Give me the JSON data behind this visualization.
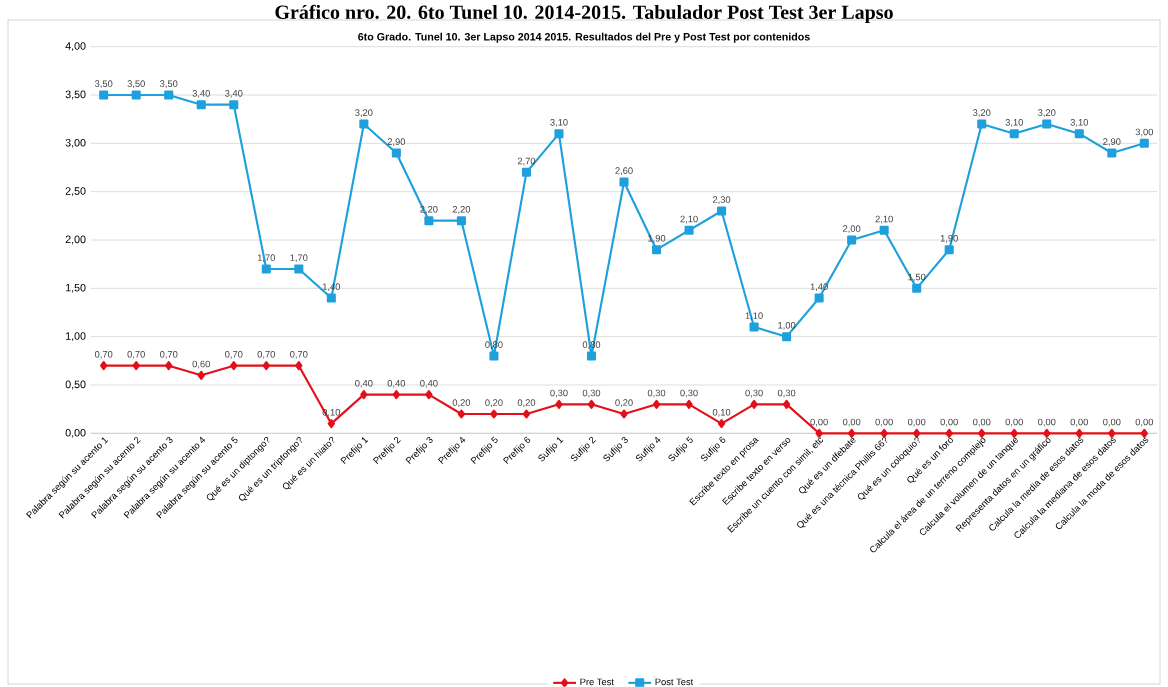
{
  "chart_data": {
    "type": "line",
    "title": "Gráfico nro. 20. 6to Tunel 10. 2014-2015. Tabulador Post Test 3er Lapso",
    "subtitle": "6to Grado. Tunel 10. 3er Lapso 2014  2015.  Resultados del Pre y Post Test por contenidos",
    "categories": [
      "Palabra según su acento 1",
      "Palabra según su acento 2",
      "Palabra según su acento 3",
      "Palabra según su acento 4",
      "Palabra según su acento 5",
      "Qué es un diptongo?",
      "Qué es un triptongo?",
      "Qué es un hiato?",
      "Prefijo 1",
      "Prefijo 2",
      "Prefijo 3",
      "Prefijo 4",
      "Prefijo 5",
      "Prefijo 6",
      "Sufijo 1",
      "Sufijo 2",
      "Sufijo 3",
      "Sufijo 4",
      "Sufijo 5",
      "Sufijo 6",
      "Escribe texto en prosa",
      "Escribe texto en verso",
      "Escribe un cuento con simil, etc",
      "Qué es un dfebate",
      "Qué es una técnica Phillis 66?",
      "Qué es un coloquio?",
      "Qué es un foro",
      "Calcula el área de un terreno complejo",
      "Calcula el volumen de un tanque",
      "Representa datos en un gráfico",
      "Calcula la media de esos datos",
      "Calcula la mediana de esos datos",
      "Calcula la moda de esos datos"
    ],
    "series": [
      {
        "name": "Pre Test",
        "color": "#e2101b",
        "marker": "diamond",
        "values": [
          0.7,
          0.7,
          0.7,
          0.6,
          0.7,
          0.7,
          0.7,
          0.1,
          0.4,
          0.4,
          0.4,
          0.2,
          0.2,
          0.2,
          0.3,
          0.3,
          0.2,
          0.3,
          0.3,
          0.1,
          0.3,
          0.3,
          0,
          0,
          0,
          0,
          0,
          0,
          0,
          0,
          0,
          0,
          0
        ],
        "value_labels": [
          "0,70",
          "0,70",
          "0,70",
          "0,60",
          "0,70",
          "0,70",
          "0,70",
          "0,10",
          "0,40",
          "0,40",
          "0,40",
          "0,20",
          "0,20",
          "0,20",
          "0,30",
          "0,30",
          "0,20",
          "0,30",
          "0,30",
          "0,10",
          "0,30",
          "0,30",
          "0,00",
          "0,00",
          "0,00",
          "0,00",
          "0,00",
          "0,00",
          "0,00",
          "0,00",
          "0,00",
          "0,00",
          "0,00"
        ]
      },
      {
        "name": "Post Test",
        "color": "#1ea0dc",
        "marker": "square",
        "values": [
          3.5,
          3.5,
          3.5,
          3.4,
          3.4,
          1.7,
          1.7,
          1.4,
          3.2,
          2.9,
          2.2,
          2.2,
          0.8,
          2.7,
          3.1,
          0.8,
          2.6,
          1.9,
          2.1,
          2.3,
          1.1,
          1.0,
          1.4,
          2.0,
          2.1,
          1.5,
          1.9,
          3.2,
          3.1,
          3.2,
          3.1,
          2.9,
          3.0
        ],
        "value_labels": [
          "3,50",
          "3,50",
          "3,50",
          "3,40",
          "3,40",
          "1,70",
          "1,70",
          "1,40",
          "3,20",
          "2,90",
          "2,20",
          "2,20",
          "0,80",
          "2,70",
          "3,10",
          "0,80",
          "2,60",
          "1,90",
          "2,10",
          "2,30",
          "1,10",
          "1,00",
          "1,40",
          "2,00",
          "2,10",
          "1,50",
          "1,90",
          "3,20",
          "3,10",
          "3,20",
          "3,10",
          "2,90",
          "3,00"
        ]
      }
    ],
    "ylim": [
      0,
      4
    ],
    "yticks": [
      {
        "value": 0,
        "label": "0,00"
      },
      {
        "value": 0.5,
        "label": "0,50"
      },
      {
        "value": 1,
        "label": "1,00"
      },
      {
        "value": 1.5,
        "label": "1,50"
      },
      {
        "value": 2,
        "label": "2,00"
      },
      {
        "value": 2.5,
        "label": "2,50"
      },
      {
        "value": 3,
        "label": "3,00"
      },
      {
        "value": 3.5,
        "label": "3,50"
      },
      {
        "value": 4,
        "label": "4,00"
      }
    ],
    "grid": "y",
    "legend": "bottom",
    "line_style": "solid"
  }
}
